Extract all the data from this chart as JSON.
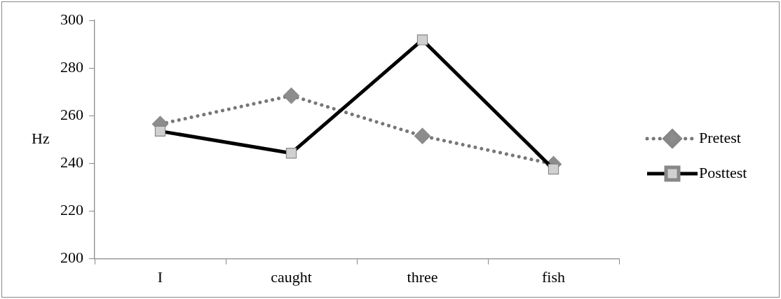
{
  "chart_data": {
    "type": "line",
    "ylabel": "Hz",
    "categories": [
      "I",
      "caught",
      "three",
      "fish"
    ],
    "series": [
      {
        "name": "Pretest",
        "color": "#777777",
        "values": [
          256.5,
          268.4,
          251.5,
          239.7
        ],
        "marker": "diamond",
        "line_style": "dotted"
      },
      {
        "name": "Posttest",
        "color": "#000000",
        "values": [
          253.5,
          244.3,
          291.8,
          237.6
        ],
        "marker": "square",
        "line_style": "solid"
      }
    ],
    "ylim": [
      200,
      300
    ],
    "yticks": [
      200,
      220,
      240,
      260,
      280,
      300
    ],
    "grid": false,
    "legend": "right"
  }
}
